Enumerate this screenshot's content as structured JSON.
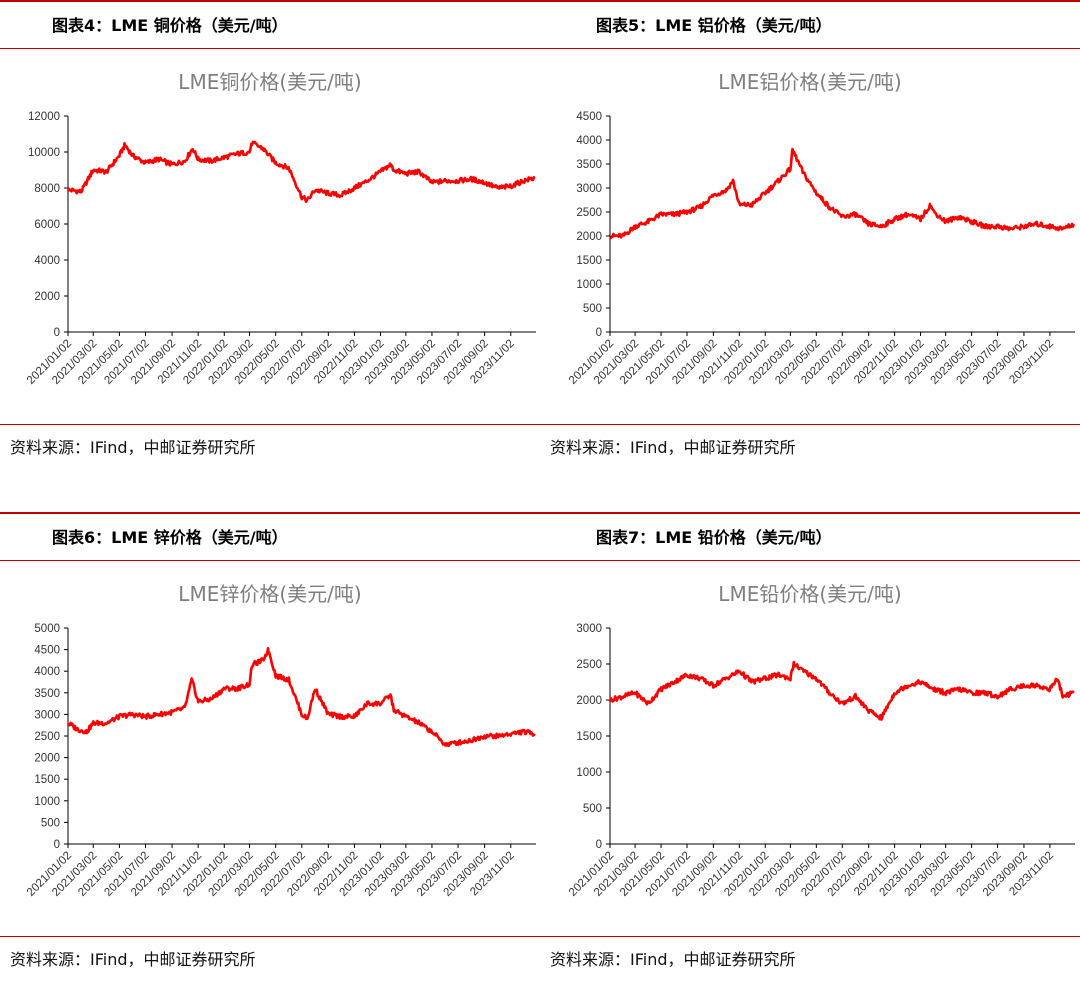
{
  "panels": [
    {
      "heading": "图表4：LME 铜价格（美元/吨）",
      "source": "资料来源：IFind，中邮证券研究所",
      "chart_data": {
        "type": "line",
        "title": "LME铜价格(美元/吨)",
        "ylim": [
          0,
          12000
        ],
        "yticks": [
          0,
          2000,
          4000,
          6000,
          8000,
          10000,
          12000
        ],
        "xticks": [
          "2021/01/02",
          "2021/03/02",
          "2021/05/02",
          "2021/07/02",
          "2021/09/02",
          "2021/11/02",
          "2022/01/02",
          "2022/03/02",
          "2022/05/02",
          "2022/07/02",
          "2022/09/02",
          "2022/11/02",
          "2023/01/02",
          "2023/03/02",
          "2023/05/02",
          "2023/07/02",
          "2023/09/02",
          "2023/11/02"
        ],
        "grid": false,
        "color": "#ff0000",
        "series": [
          {
            "x": [
              "2021/01/02",
              "2021/02/02",
              "2021/03/02",
              "2021/04/02",
              "2021/05/02",
              "2021/05/15",
              "2021/06/02",
              "2021/07/02",
              "2021/08/02",
              "2021/09/02",
              "2021/10/02",
              "2021/10/20",
              "2021/11/02",
              "2021/12/02",
              "2022/01/02",
              "2022/02/02",
              "2022/03/02",
              "2022/03/08",
              "2022/04/02",
              "2022/05/02",
              "2022/06/02",
              "2022/07/02",
              "2022/07/15",
              "2022/08/02",
              "2022/09/02",
              "2022/10/02",
              "2022/11/02",
              "2022/12/02",
              "2023/01/02",
              "2023/01/25",
              "2023/02/02",
              "2023/03/02",
              "2023/04/02",
              "2023/05/02",
              "2023/06/02",
              "2023/07/02",
              "2023/08/02",
              "2023/09/02",
              "2023/10/02",
              "2023/11/02",
              "2023/12/02",
              "2023/12/28"
            ],
            "y": [
              7900,
              7800,
              9000,
              8900,
              9800,
              10400,
              9800,
              9400,
              9600,
              9300,
              9500,
              10200,
              9600,
              9500,
              9700,
              9900,
              10000,
              10500,
              10200,
              9400,
              9100,
              7500,
              7300,
              7900,
              7700,
              7600,
              8000,
              8400,
              8900,
              9300,
              9000,
              8800,
              8900,
              8300,
              8400,
              8400,
              8500,
              8300,
              8000,
              8100,
              8400,
              8550
            ]
          }
        ]
      }
    },
    {
      "heading": "图表5：LME 铝价格（美元/吨）",
      "source": "资料来源：IFind，中邮证券研究所",
      "chart_data": {
        "type": "line",
        "title": "LME铝价格(美元/吨)",
        "ylim": [
          0,
          4500
        ],
        "yticks": [
          0,
          500,
          1000,
          1500,
          2000,
          2500,
          3000,
          3500,
          4000,
          4500
        ],
        "xticks": [
          "2021/01/02",
          "2021/03/02",
          "2021/05/02",
          "2021/07/02",
          "2021/09/02",
          "2021/11/02",
          "2022/01/02",
          "2022/03/02",
          "2022/05/02",
          "2022/07/02",
          "2022/09/02",
          "2022/11/02",
          "2023/01/02",
          "2023/03/02",
          "2023/05/02",
          "2023/07/02",
          "2023/09/02",
          "2023/11/02"
        ],
        "grid": false,
        "color": "#ff0000",
        "series": [
          {
            "x": [
              "2021/01/02",
              "2021/02/02",
              "2021/03/02",
              "2021/04/02",
              "2021/05/02",
              "2021/06/02",
              "2021/07/02",
              "2021/08/02",
              "2021/09/02",
              "2021/10/02",
              "2021/10/18",
              "2021/11/02",
              "2021/12/02",
              "2022/01/02",
              "2022/02/02",
              "2022/03/02",
              "2022/03/07",
              "2022/04/02",
              "2022/05/02",
              "2022/06/02",
              "2022/07/02",
              "2022/08/02",
              "2022/09/02",
              "2022/10/02",
              "2022/11/02",
              "2022/12/02",
              "2023/01/02",
              "2023/01/25",
              "2023/02/02",
              "2023/03/02",
              "2023/04/02",
              "2023/05/02",
              "2023/06/02",
              "2023/07/02",
              "2023/08/02",
              "2023/09/02",
              "2023/10/02",
              "2023/11/02",
              "2023/12/02",
              "2023/12/28"
            ],
            "y": [
              2000,
              2000,
              2200,
              2300,
              2450,
              2450,
              2500,
              2600,
              2850,
              2950,
              3150,
              2650,
              2650,
              2900,
              3150,
              3400,
              3800,
              3300,
              2900,
              2600,
              2400,
              2450,
              2250,
              2200,
              2350,
              2450,
              2350,
              2650,
              2500,
              2300,
              2400,
              2300,
              2200,
              2200,
              2150,
              2200,
              2250,
              2200,
              2150,
              2250
            ]
          }
        ]
      }
    },
    {
      "heading": "图表6：LME 锌价格（美元/吨）",
      "source": "资料来源：IFind，中邮证券研究所",
      "chart_data": {
        "type": "line",
        "title": "LME锌价格(美元/吨)",
        "ylim": [
          0,
          5000
        ],
        "yticks": [
          0,
          500,
          1000,
          1500,
          2000,
          2500,
          3000,
          3500,
          4000,
          4500,
          5000
        ],
        "xticks": [
          "2021/01/02",
          "2021/03/02",
          "2021/05/02",
          "2021/07/02",
          "2021/09/02",
          "2021/11/02",
          "2022/01/02",
          "2022/03/02",
          "2022/05/02",
          "2022/07/02",
          "2022/09/02",
          "2022/11/02",
          "2023/01/02",
          "2023/03/02",
          "2023/05/02",
          "2023/07/02",
          "2023/09/02",
          "2023/11/02"
        ],
        "grid": false,
        "color": "#ff0000",
        "series": [
          {
            "x": [
              "2021/01/02",
              "2021/01/25",
              "2021/02/15",
              "2021/03/02",
              "2021/04/02",
              "2021/05/02",
              "2021/06/02",
              "2021/07/02",
              "2021/08/02",
              "2021/09/02",
              "2021/10/02",
              "2021/10/18",
              "2021/11/02",
              "2021/12/02",
              "2022/01/02",
              "2022/02/02",
              "2022/03/02",
              "2022/03/08",
              "2022/04/02",
              "2022/04/15",
              "2022/05/02",
              "2022/06/02",
              "2022/07/02",
              "2022/07/15",
              "2022/08/02",
              "2022/09/02",
              "2022/10/02",
              "2022/11/02",
              "2022/12/02",
              "2023/01/02",
              "2023/01/25",
              "2023/02/02",
              "2023/03/02",
              "2023/04/02",
              "2023/05/02",
              "2023/06/02",
              "2023/07/02",
              "2023/08/02",
              "2023/09/02",
              "2023/10/02",
              "2023/11/02",
              "2023/12/02",
              "2023/12/28"
            ],
            "y": [
              2800,
              2650,
              2600,
              2800,
              2800,
              2950,
              3000,
              2950,
              3000,
              3050,
              3150,
              3800,
              3300,
              3350,
              3600,
              3600,
              3700,
              4150,
              4250,
              4500,
              3900,
              3800,
              3000,
              2900,
              3600,
              3000,
              2950,
              2950,
              3250,
              3250,
              3450,
              3100,
              2950,
              2800,
              2600,
              2300,
              2350,
              2400,
              2500,
              2500,
              2550,
              2600,
              2550
            ]
          }
        ]
      }
    },
    {
      "heading": "图表7：LME 铅价格（美元/吨）",
      "source": "资料来源：IFind，中邮证券研究所",
      "chart_data": {
        "type": "line",
        "title": "LME铅价格(美元/吨)",
        "ylim": [
          0,
          3000
        ],
        "yticks": [
          0,
          500,
          1000,
          1500,
          2000,
          2500,
          3000
        ],
        "xticks": [
          "2021/01/02",
          "2021/03/02",
          "2021/05/02",
          "2021/07/02",
          "2021/09/02",
          "2021/11/02",
          "2022/01/02",
          "2022/03/02",
          "2022/05/02",
          "2022/07/02",
          "2022/09/02",
          "2022/11/02",
          "2023/01/02",
          "2023/03/02",
          "2023/05/02",
          "2023/07/02",
          "2023/09/02",
          "2023/11/02"
        ],
        "grid": false,
        "color": "#ff0000",
        "series": [
          {
            "x": [
              "2021/01/02",
              "2021/02/02",
              "2021/03/02",
              "2021/04/02",
              "2021/05/02",
              "2021/06/02",
              "2021/07/02",
              "2021/08/02",
              "2021/09/02",
              "2021/10/02",
              "2021/11/02",
              "2021/12/02",
              "2022/01/02",
              "2022/02/02",
              "2022/03/02",
              "2022/03/10",
              "2022/04/02",
              "2022/05/02",
              "2022/06/02",
              "2022/07/02",
              "2022/08/02",
              "2022/09/02",
              "2022/10/02",
              "2022/11/02",
              "2022/12/02",
              "2023/01/02",
              "2023/02/02",
              "2023/03/02",
              "2023/04/02",
              "2023/05/02",
              "2023/06/02",
              "2023/07/02",
              "2023/08/02",
              "2023/09/02",
              "2023/10/02",
              "2023/11/02",
              "2023/11/20",
              "2023/12/02",
              "2023/12/28"
            ],
            "y": [
              2000,
              2050,
              2100,
              1950,
              2150,
              2250,
              2350,
              2300,
              2200,
              2300,
              2400,
              2250,
              2300,
              2350,
              2300,
              2500,
              2400,
              2300,
              2100,
              1950,
              2050,
              1850,
              1750,
              2100,
              2200,
              2250,
              2150,
              2100,
              2150,
              2100,
              2100,
              2050,
              2150,
              2200,
              2200,
              2150,
              2300,
              2050,
              2100
            ]
          }
        ]
      }
    }
  ]
}
